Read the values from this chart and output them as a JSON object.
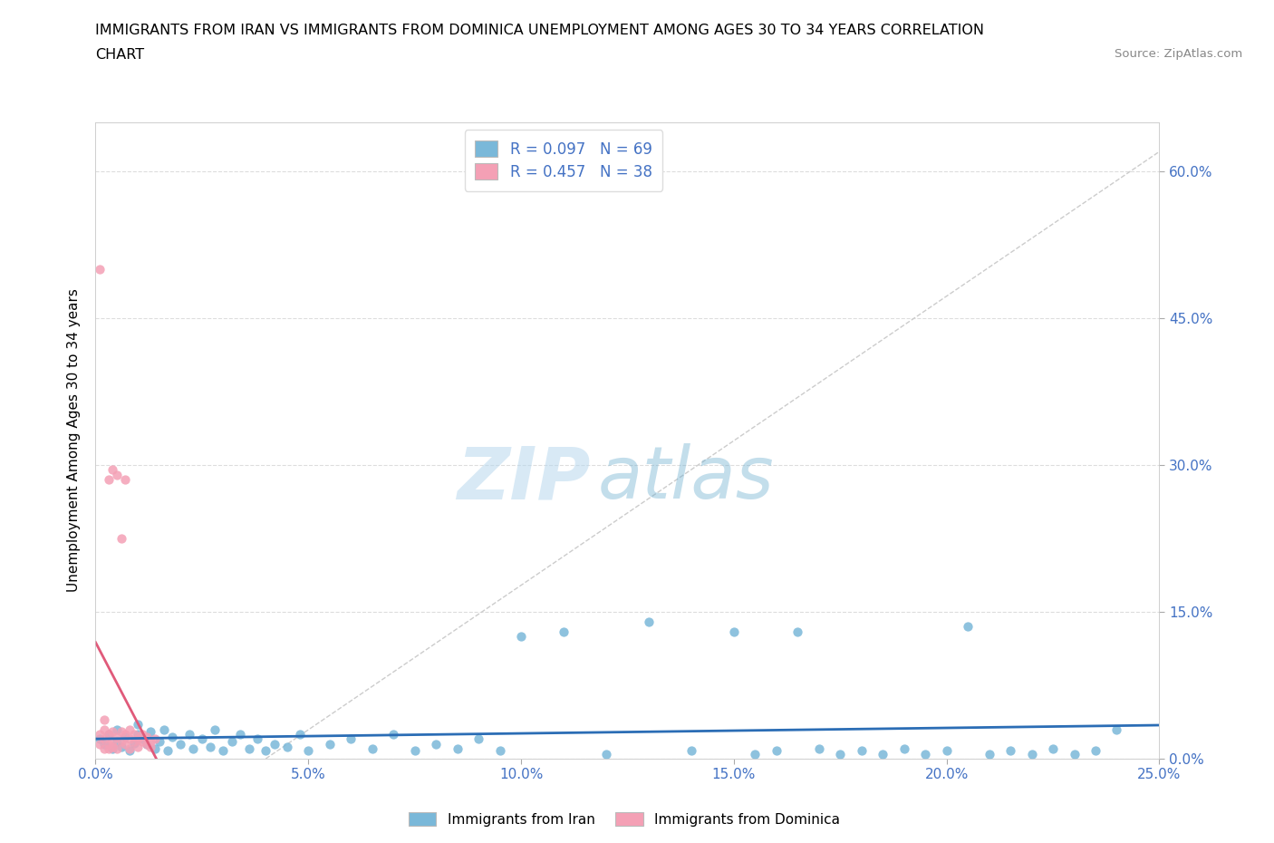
{
  "title_line1": "IMMIGRANTS FROM IRAN VS IMMIGRANTS FROM DOMINICA UNEMPLOYMENT AMONG AGES 30 TO 34 YEARS CORRELATION",
  "title_line2": "CHART",
  "source": "Source: ZipAtlas.com",
  "ylabel": "Unemployment Among Ages 30 to 34 years",
  "xlim": [
    0.0,
    0.25
  ],
  "ylim": [
    0.0,
    0.65
  ],
  "yticks": [
    0.0,
    0.15,
    0.3,
    0.45,
    0.6
  ],
  "ytick_labels": [
    "0.0%",
    "15.0%",
    "30.0%",
    "45.0%",
    "60.0%"
  ],
  "xticks": [
    0.0,
    0.05,
    0.1,
    0.15,
    0.2,
    0.25
  ],
  "xtick_labels": [
    "0.0%",
    "5.0%",
    "10.0%",
    "15.0%",
    "20.0%",
    "25.0%"
  ],
  "iran_R": 0.097,
  "iran_N": 69,
  "dominica_R": 0.457,
  "dominica_N": 38,
  "iran_color": "#7ab8d9",
  "dominica_color": "#f4a0b5",
  "iran_trendline_color": "#2b6db5",
  "dominica_trendline_color": "#e05a7a",
  "axis_color": "#4472c4",
  "iran_scatter_x": [
    0.001,
    0.002,
    0.003,
    0.004,
    0.005,
    0.005,
    0.006,
    0.007,
    0.008,
    0.009,
    0.01,
    0.01,
    0.011,
    0.012,
    0.013,
    0.014,
    0.015,
    0.016,
    0.017,
    0.018,
    0.02,
    0.022,
    0.023,
    0.025,
    0.027,
    0.028,
    0.03,
    0.032,
    0.034,
    0.036,
    0.038,
    0.04,
    0.042,
    0.045,
    0.048,
    0.05,
    0.055,
    0.06,
    0.065,
    0.07,
    0.075,
    0.08,
    0.085,
    0.09,
    0.095,
    0.1,
    0.11,
    0.12,
    0.13,
    0.14,
    0.15,
    0.155,
    0.16,
    0.165,
    0.17,
    0.175,
    0.18,
    0.185,
    0.19,
    0.195,
    0.2,
    0.205,
    0.21,
    0.215,
    0.22,
    0.225,
    0.23,
    0.235,
    0.24
  ],
  "iran_scatter_y": [
    0.02,
    0.015,
    0.025,
    0.01,
    0.018,
    0.03,
    0.012,
    0.022,
    0.008,
    0.016,
    0.025,
    0.035,
    0.02,
    0.015,
    0.028,
    0.01,
    0.018,
    0.03,
    0.008,
    0.022,
    0.015,
    0.025,
    0.01,
    0.02,
    0.012,
    0.03,
    0.008,
    0.018,
    0.025,
    0.01,
    0.02,
    0.008,
    0.015,
    0.012,
    0.025,
    0.008,
    0.015,
    0.02,
    0.01,
    0.025,
    0.008,
    0.015,
    0.01,
    0.02,
    0.008,
    0.125,
    0.13,
    0.005,
    0.14,
    0.008,
    0.13,
    0.005,
    0.008,
    0.13,
    0.01,
    0.005,
    0.008,
    0.005,
    0.01,
    0.005,
    0.008,
    0.135,
    0.005,
    0.008,
    0.005,
    0.01,
    0.005,
    0.008,
    0.03
  ],
  "dominica_scatter_x": [
    0.001,
    0.001,
    0.001,
    0.002,
    0.002,
    0.002,
    0.002,
    0.003,
    0.003,
    0.003,
    0.003,
    0.004,
    0.004,
    0.004,
    0.004,
    0.005,
    0.005,
    0.005,
    0.006,
    0.006,
    0.006,
    0.007,
    0.007,
    0.007,
    0.008,
    0.008,
    0.008,
    0.009,
    0.009,
    0.01,
    0.01,
    0.011,
    0.011,
    0.012,
    0.012,
    0.013,
    0.013,
    0.014
  ],
  "dominica_scatter_y": [
    0.5,
    0.015,
    0.025,
    0.01,
    0.02,
    0.03,
    0.04,
    0.015,
    0.025,
    0.01,
    0.285,
    0.018,
    0.028,
    0.295,
    0.012,
    0.022,
    0.29,
    0.01,
    0.018,
    0.028,
    0.225,
    0.015,
    0.025,
    0.285,
    0.02,
    0.01,
    0.03,
    0.018,
    0.025,
    0.02,
    0.012,
    0.018,
    0.025,
    0.015,
    0.022,
    0.018,
    0.012,
    0.02
  ],
  "diagonal_ref_line_color": "#cccccc",
  "grid_color": "#dddddd"
}
